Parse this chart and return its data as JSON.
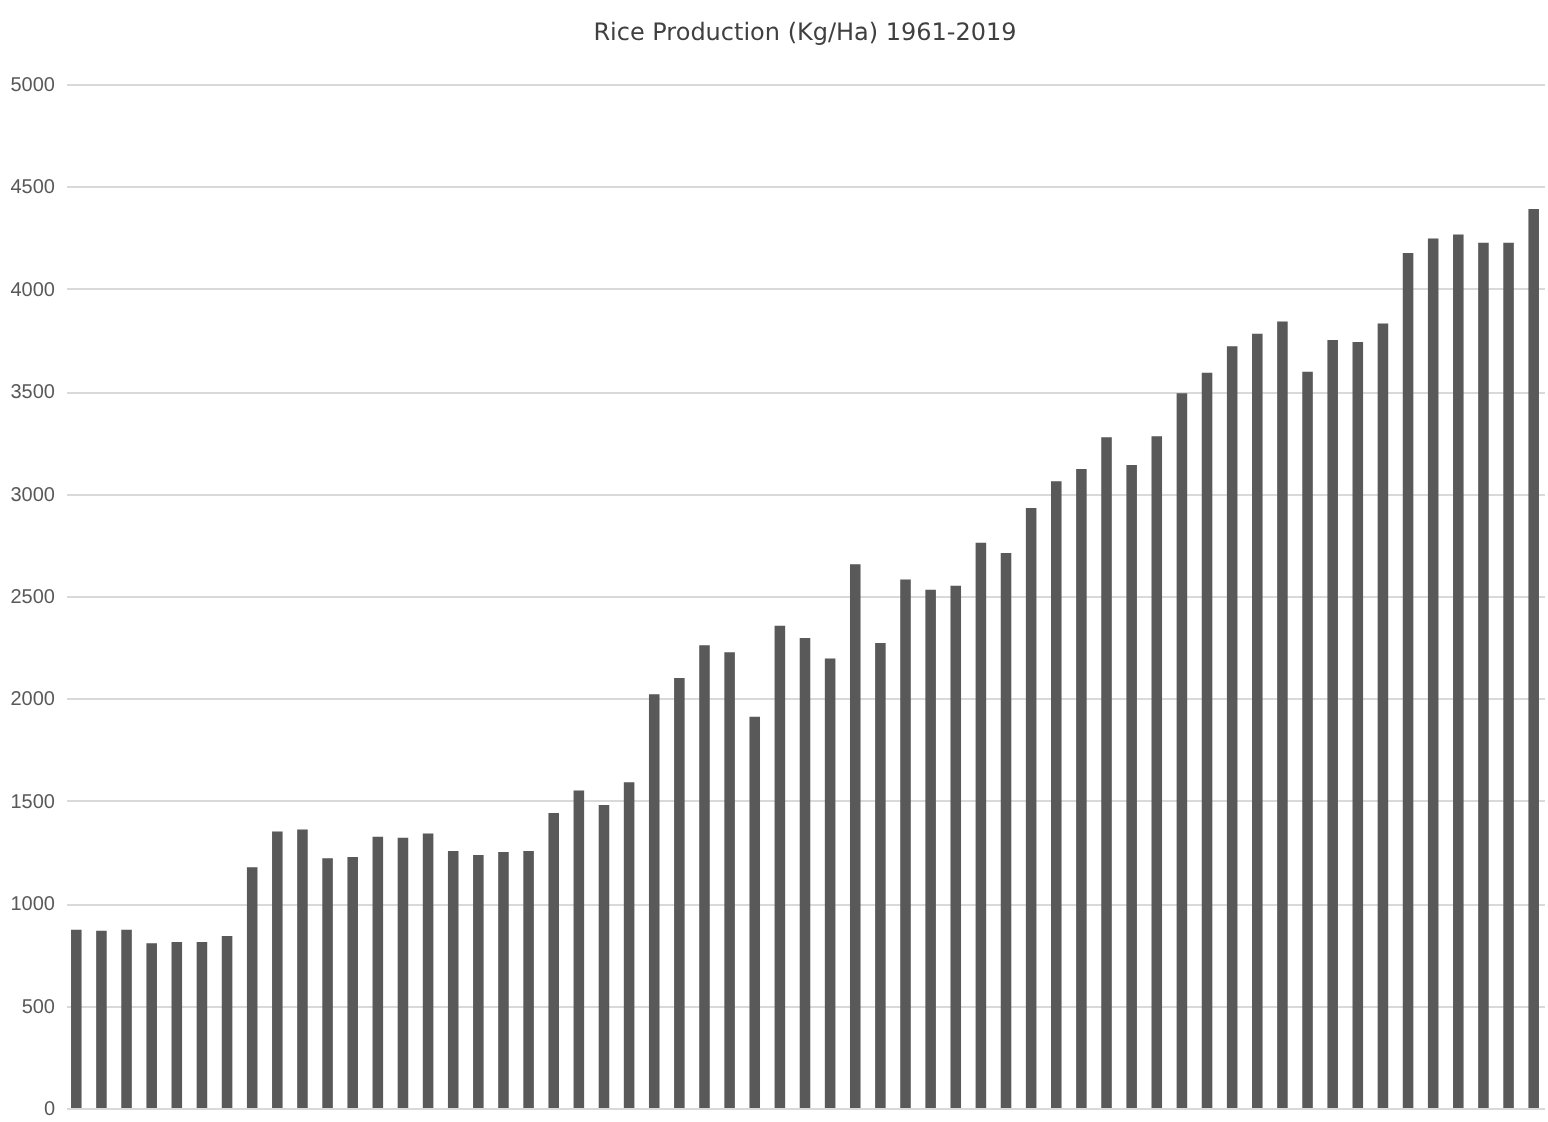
{
  "chart_data": {
    "type": "bar",
    "title": "Rice Production (Kg/Ha) 1961-2019",
    "categories": [
      null,
      null,
      null,
      null,
      null,
      null,
      null,
      null,
      null,
      null,
      null,
      null,
      null,
      null,
      null,
      null,
      null,
      null,
      null,
      null,
      null,
      null,
      null,
      null,
      null,
      null,
      null,
      null,
      null,
      null,
      null,
      null,
      null,
      null,
      null,
      null,
      null,
      null,
      null,
      null,
      null,
      null,
      null,
      null,
      null,
      null,
      null,
      null,
      null,
      null,
      null,
      null,
      null,
      null,
      null,
      null,
      null,
      null,
      null
    ],
    "values": [
      870,
      865,
      870,
      805,
      810,
      810,
      840,
      1175,
      1350,
      1360,
      1220,
      1225,
      1325,
      1320,
      1340,
      1255,
      1235,
      1250,
      1255,
      1440,
      1550,
      1480,
      1590,
      2020,
      2100,
      2260,
      2225,
      1910,
      2355,
      2295,
      2195,
      2655,
      2270,
      2580,
      2530,
      2550,
      2760,
      2710,
      2930,
      3060,
      3120,
      3275,
      3140,
      3280,
      3490,
      3590,
      3720,
      3780,
      3840,
      3595,
      3750,
      3740,
      3830,
      4175,
      4245,
      4265,
      4225,
      4225,
      4390
    ],
    "color": "#595959",
    "ylim": [
      0,
      5000
    ],
    "yticks": [
      0,
      500,
      1000,
      1500,
      2000,
      2500,
      3000,
      3500,
      4000,
      4500,
      5000
    ],
    "grid": "y"
  }
}
